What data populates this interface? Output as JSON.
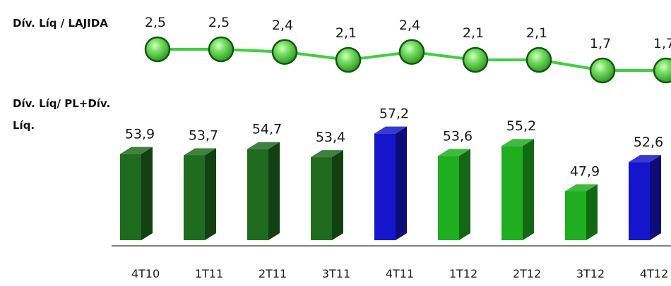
{
  "chart_data": [
    {
      "type": "line",
      "label": "Dív. Líq / LAJIDA",
      "categories": [
        "4T10",
        "1T11",
        "2T11",
        "3T11",
        "4T11",
        "1T12",
        "2T12",
        "3T12",
        "4T12"
      ],
      "values": [
        2.5,
        2.5,
        2.4,
        2.1,
        2.4,
        2.1,
        2.1,
        1.7,
        1.7
      ],
      "value_labels": [
        "2,5",
        "2,5",
        "2,4",
        "2,1",
        "2,4",
        "2,1",
        "2,1",
        "1,7",
        "1,7"
      ],
      "colors": {
        "line": "#3fcf3f",
        "marker": "#49d13d",
        "marker_edge": "#0f5a0f"
      }
    },
    {
      "type": "bar",
      "label_line1": "Dív. Líq/ PL+Dív.",
      "label_line2": "Líq.",
      "categories": [
        "4T10",
        "1T11",
        "2T11",
        "3T11",
        "4T11",
        "1T12",
        "2T12",
        "3T12",
        "4T12"
      ],
      "values": [
        53.9,
        53.7,
        54.7,
        53.4,
        57.2,
        53.6,
        55.2,
        47.9,
        52.6
      ],
      "value_labels": [
        "53,9",
        "53,7",
        "54,7",
        "53,4",
        "57,2",
        "53,6",
        "55,2",
        "47,9",
        "52,6"
      ],
      "bar_colors": [
        "#1f6b1f",
        "#1f6b1f",
        "#1f6b1f",
        "#1f6b1f",
        "#1515cc",
        "#1fae1f",
        "#1fae1f",
        "#1fae1f",
        "#1515cc"
      ]
    }
  ]
}
